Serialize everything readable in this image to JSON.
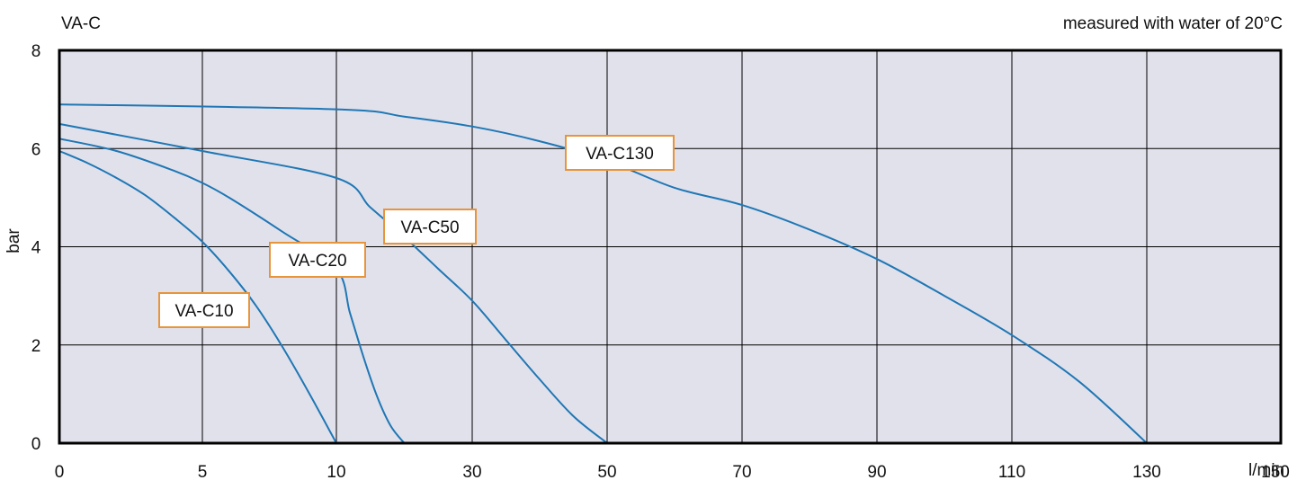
{
  "chart_data": {
    "type": "line",
    "title": "VA-C",
    "note": "measured with water of 20°C",
    "ylabel": "bar",
    "xunit": "l/min",
    "ylim": [
      0,
      8
    ],
    "yticks": [
      "0",
      "2",
      "4",
      "6",
      "8"
    ],
    "xticks": [
      "0",
      "5",
      "10",
      "30",
      "50",
      "70",
      "90",
      "110",
      "130",
      "150"
    ],
    "grid": true,
    "colors": {
      "curve": "#1f77b4",
      "plot_bg": "#e1e1ec",
      "label_border": "#e8943a",
      "grid": "#000000"
    },
    "series": [
      {
        "name": "VA-C10",
        "x": [
          0,
          1,
          2,
          3,
          4,
          5,
          6,
          7,
          8,
          9,
          10
        ],
        "y": [
          5.95,
          5.7,
          5.4,
          5.05,
          4.6,
          4.1,
          3.5,
          2.8,
          1.95,
          1.0,
          0
        ]
      },
      {
        "name": "VA-C20",
        "x": [
          0,
          2,
          4,
          5,
          6,
          8,
          10,
          12,
          14,
          16,
          18,
          20
        ],
        "y": [
          6.2,
          5.95,
          5.55,
          5.3,
          5.0,
          4.3,
          3.55,
          2.65,
          1.75,
          0.95,
          0.35,
          0
        ]
      },
      {
        "name": "VA-C50",
        "x": [
          0,
          5,
          10,
          15,
          20,
          25,
          30,
          35,
          40,
          45,
          50
        ],
        "y": [
          6.5,
          5.95,
          5.4,
          4.8,
          4.2,
          3.55,
          2.9,
          2.1,
          1.3,
          0.55,
          0
        ]
      },
      {
        "name": "VA-C130",
        "x": [
          0,
          10,
          20,
          30,
          40,
          50,
          60,
          70,
          80,
          90,
          100,
          110,
          120,
          130
        ],
        "y": [
          6.9,
          6.8,
          6.65,
          6.45,
          6.15,
          5.75,
          5.2,
          4.85,
          4.35,
          3.75,
          3.0,
          2.2,
          1.25,
          0
        ]
      }
    ]
  }
}
